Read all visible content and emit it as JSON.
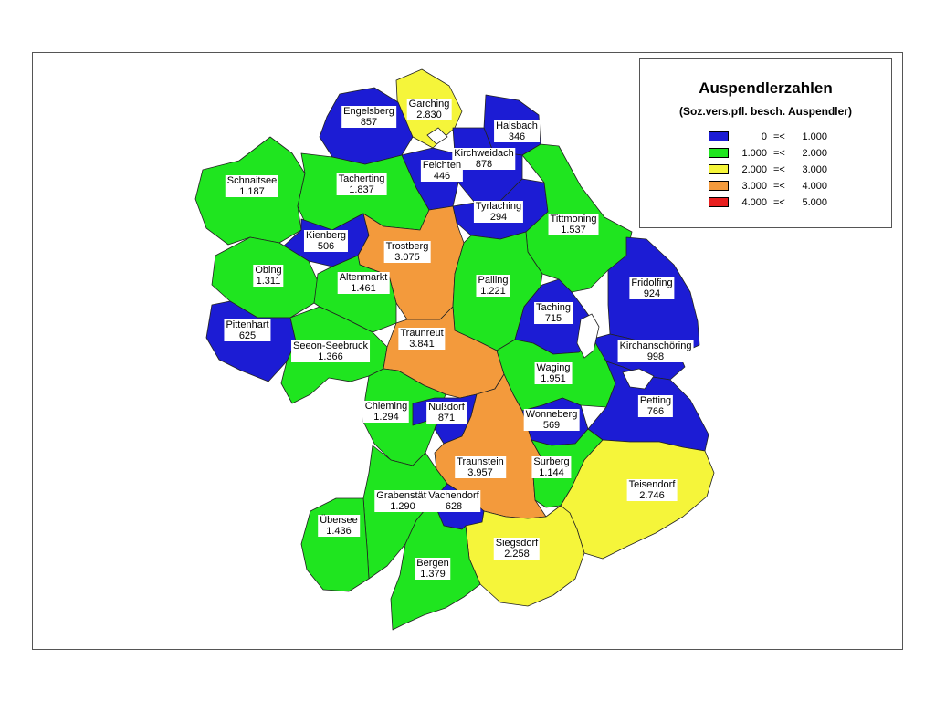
{
  "legend": {
    "title": "Auspendlerzahlen",
    "subtitle": "(Soz.vers.pfl. besch. Auspendler)",
    "classes": [
      {
        "from": "0",
        "op": "=<",
        "to": "1.000",
        "color": "#1c1cd4"
      },
      {
        "from": "1.000",
        "op": "=<",
        "to": "2.000",
        "color": "#1fe51f"
      },
      {
        "from": "2.000",
        "op": "=<",
        "to": "3.000",
        "color": "#f5f53a"
      },
      {
        "from": "3.000",
        "op": "=<",
        "to": "4.000",
        "color": "#f39a3c"
      },
      {
        "from": "4.000",
        "op": "=<",
        "to": "5.000",
        "color": "#e81f1f"
      }
    ]
  },
  "regions": [
    {
      "name": "Garching",
      "value": "2.830"
    },
    {
      "name": "Engelsberg",
      "value": "857"
    },
    {
      "name": "Halsbach",
      "value": "346"
    },
    {
      "name": "Kirchweidach",
      "value": "878"
    },
    {
      "name": "Feichten",
      "value": "446"
    },
    {
      "name": "Schnaitsee",
      "value": "1.187"
    },
    {
      "name": "Tacherting",
      "value": "1.837"
    },
    {
      "name": "Tyrlaching",
      "value": "294"
    },
    {
      "name": "Tittmoning",
      "value": "1.537"
    },
    {
      "name": "Kienberg",
      "value": "506"
    },
    {
      "name": "Trostberg",
      "value": "3.075"
    },
    {
      "name": "Obing",
      "value": "1.311"
    },
    {
      "name": "Altenmarkt",
      "value": "1.461"
    },
    {
      "name": "Palling",
      "value": "1.221"
    },
    {
      "name": "Fridolfing",
      "value": "924"
    },
    {
      "name": "Taching",
      "value": "715"
    },
    {
      "name": "Pittenhart",
      "value": "625"
    },
    {
      "name": "Seeon-Seebruck",
      "value": "1.366"
    },
    {
      "name": "Traunreut",
      "value": "3.841"
    },
    {
      "name": "Kirchanschöring",
      "value": "998"
    },
    {
      "name": "Waging",
      "value": "1.951"
    },
    {
      "name": "Chieming",
      "value": "1.294"
    },
    {
      "name": "Nußdorf",
      "value": "871"
    },
    {
      "name": "Wonneberg",
      "value": "569"
    },
    {
      "name": "Petting",
      "value": "766"
    },
    {
      "name": "Traunstein",
      "value": "3.957"
    },
    {
      "name": "Surberg",
      "value": "1.144"
    },
    {
      "name": "Teisendorf",
      "value": "2.746"
    },
    {
      "name": "Grabenstätt",
      "value": "1.290"
    },
    {
      "name": "Vachendorf",
      "value": "628"
    },
    {
      "name": "Übersee",
      "value": "1.436"
    },
    {
      "name": "Siegsdorf",
      "value": "2.258"
    },
    {
      "name": "Bergen",
      "value": "1.379"
    }
  ]
}
